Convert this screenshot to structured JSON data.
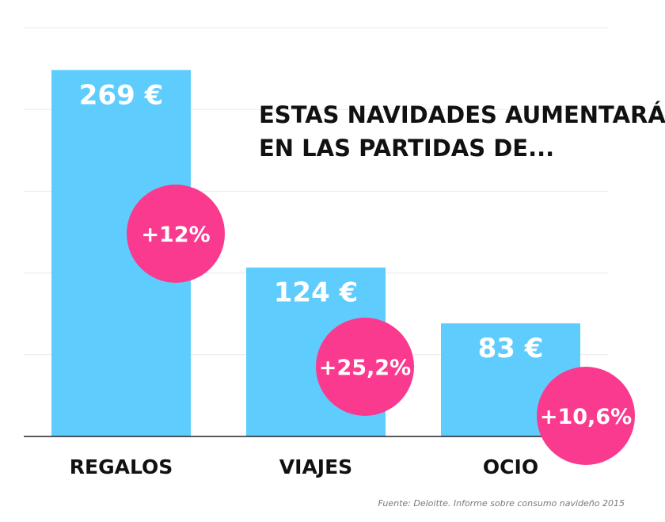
{
  "chart_data": {
    "type": "bar",
    "title_lines": [
      "ESTAS NAVIDADES AUMENTARÁ EL GASTO",
      "EN LAS PARTIDAS DE..."
    ],
    "categories": [
      "REGALOS",
      "VIAJES",
      "OCIO"
    ],
    "values": [
      269,
      124,
      83
    ],
    "value_labels": [
      "269 €",
      "124 €",
      "83 €"
    ],
    "changes": [
      "+12%",
      "+25,2%",
      "+10,6%"
    ],
    "ylim": [
      0,
      300
    ],
    "grid": true,
    "source": "Fuente: Deloitte. Informe sobre consumo navideño 2015"
  },
  "colors": {
    "bar": "#5ecdfd",
    "badge": "#fa3a8e",
    "grid": "#e9e9e9",
    "axis": "#222222"
  }
}
